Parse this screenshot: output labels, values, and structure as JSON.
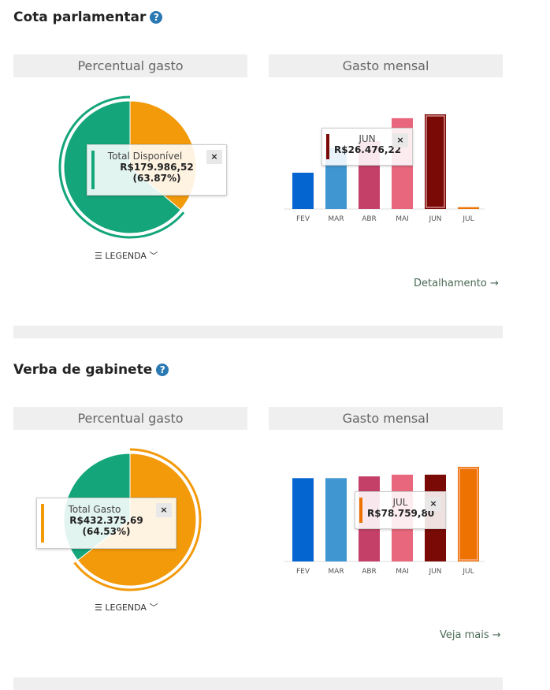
{
  "sections": [
    {
      "title": "Cota parlamentar",
      "pie_header": "Percentual gasto",
      "bar_header": "Gasto mensal",
      "legend_label": "LEGENDA",
      "link": "Detalhamento →",
      "pie_tooltip": {
        "title": "Total Disponível",
        "value": "R$179.986,52",
        "percent": "(63.87%)",
        "color": "#14a57a"
      },
      "bar_tooltip": {
        "title": "JUN",
        "value": "R$26.476,22",
        "color": "#7a0a05"
      }
    },
    {
      "title": "Verba de gabinete",
      "pie_header": "Percentual gasto",
      "bar_header": "Gasto mensal",
      "legend_label": "LEGENDA",
      "link": "Veja mais →",
      "pie_tooltip": {
        "title": "Total Gasto",
        "value": "R$432.375,69",
        "percent": "(64.53%)",
        "color": "#f39a0a"
      },
      "bar_tooltip": {
        "title": "JUL",
        "value": "R$78.759,80",
        "color": "#ee7202"
      }
    }
  ],
  "help_icon": "?",
  "close_icon": "×",
  "chart_data": [
    {
      "type": "pie",
      "title": "Percentual gasto",
      "slices": [
        {
          "name": "Total Gasto",
          "value": 36.13,
          "color": "#f39a0a"
        },
        {
          "name": "Total Disponível",
          "value": 63.87,
          "color": "#14a57a"
        }
      ],
      "highlight": 1
    },
    {
      "type": "bar",
      "title": "Gasto mensal",
      "categories": [
        "FEV",
        "MAR",
        "ABR",
        "MAI",
        "JUN",
        "JUL"
      ],
      "values": [
        10150,
        17000,
        19000,
        25400,
        26476.22,
        500
      ],
      "colors": [
        "#0565d0",
        "#4096d0",
        "#c44068",
        "#e8677c",
        "#7a0a05",
        "#ee7202"
      ],
      "highlight": 4,
      "ylim": [
        0,
        26476.22
      ]
    },
    {
      "type": "pie",
      "title": "Percentual gasto",
      "slices": [
        {
          "name": "Total Gasto",
          "value": 64.53,
          "color": "#f39a0a"
        },
        {
          "name": "Total Disponível",
          "value": 35.47,
          "color": "#14a57a"
        }
      ],
      "highlight": 0
    },
    {
      "type": "bar",
      "title": "Gasto mensal",
      "categories": [
        "FEV",
        "MAR",
        "ABR",
        "MAI",
        "JUN",
        "JUL"
      ],
      "values": [
        69360,
        69360,
        70800,
        72250,
        72250,
        78759.8
      ],
      "colors": [
        "#0565d0",
        "#4096d0",
        "#c44068",
        "#e8677c",
        "#7a0a05",
        "#ee7202"
      ],
      "highlight": 5,
      "ylim": [
        0,
        78759.8
      ]
    }
  ]
}
